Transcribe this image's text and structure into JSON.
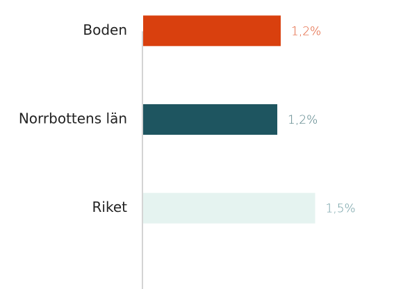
{
  "chart_data": {
    "type": "hbar",
    "categories": [
      "Boden",
      "Norrbottens län",
      "Riket"
    ],
    "values": [
      1.2,
      1.17,
      1.5
    ],
    "value_labels": [
      "1,2%",
      "1,2%",
      "1,5%"
    ],
    "colors": [
      "#d9400e",
      "#1e5560",
      "#e5f3f0"
    ],
    "label_colors": [
      "#e0542a",
      "#4f7c82",
      "#6a9aa0"
    ],
    "xlim": [
      0,
      2.4
    ]
  }
}
